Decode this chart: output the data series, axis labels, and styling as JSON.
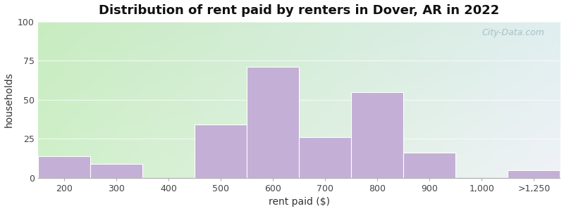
{
  "title": "Distribution of rent paid by renters in Dover, AR in 2022",
  "xlabel": "rent paid ($)",
  "ylabel": "households",
  "bar_labels": [
    "200",
    "300",
    "400",
    "500",
    "600",
    "700",
    "800",
    "900",
    "1,000",
    ">1,250"
  ],
  "bar_heights": [
    14,
    9,
    0,
    34,
    71,
    26,
    55,
    16,
    0,
    5
  ],
  "bar_color": "#c4afd6",
  "bar_edgecolor": "#ffffff",
  "ylim": [
    0,
    100
  ],
  "yticks": [
    0,
    25,
    50,
    75,
    100
  ],
  "title_fontsize": 13,
  "axis_fontsize": 10,
  "tick_fontsize": 9,
  "bg_color_topleft": "#c8ecc0",
  "bg_color_topright": "#ddeee8",
  "bg_color_bottomleft": "#c8ecc0",
  "bg_color_bottomright": "#e8eef4",
  "watermark": "City-Data.com",
  "figure_width": 8.0,
  "figure_height": 3.0,
  "dpi": 100
}
